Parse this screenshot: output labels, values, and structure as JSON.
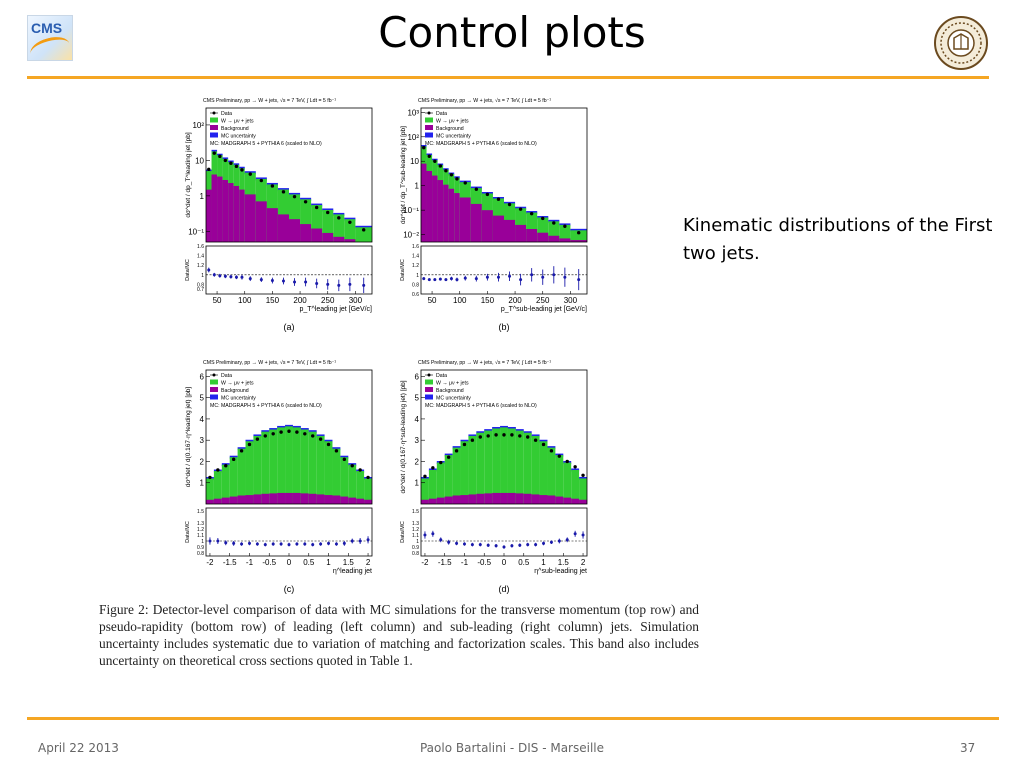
{
  "slide": {
    "title": "Control plots",
    "side_text": "Kinematic distributions of the First two jets."
  },
  "footer": {
    "date": "April 22 2013",
    "author_event": "Paolo Bartalini - DIS - Marseille",
    "page": "37"
  },
  "logos": {
    "left_text": "CMS",
    "left_icon": "cms-logo-icon",
    "right_icon": "university-seal-icon"
  },
  "figure": {
    "header": "CMS Preliminary,  pp → W + jets,  √s = 7 TeV,   ∫ Ldt = 5 fb⁻¹",
    "legend": [
      {
        "label": "Data",
        "color": "#000000",
        "kind": "marker"
      },
      {
        "label": "W → μν + jets",
        "color": "#33cc33",
        "kind": "box"
      },
      {
        "label": "Background",
        "color": "#990099",
        "kind": "box"
      },
      {
        "label": "MC uncertainty",
        "color": "#2222ee",
        "kind": "box"
      }
    ],
    "mc_note": "MC: MADGRAPH 5 + PYTHIA 6 (scaled to NLO)",
    "ratio_label": "Data/MC",
    "caption": "Figure 2: Detector-level comparison of data with MC simulations for the transverse momentum (top row) and pseudo-rapidity (bottom row) of leading (left column) and sub-leading (right column) jets.  Simulation uncertainty includes systematic due to variation of matching and factorization scales. This band also includes uncertainty on theoretical cross sections quoted in Table 1."
  },
  "colors": {
    "accent": "#f5a623",
    "signal": "#33cc33",
    "background": "#990099",
    "uncertainty": "#2222ee",
    "ratio_points": "#1a1aaa"
  },
  "chart_data": [
    {
      "id": "a",
      "tag": "(a)",
      "type": "bar",
      "scale": "log",
      "ylabel": "dσ^det / dp_T^leading jet [pb]",
      "xlabel": "p_T^leading jet [GeV/c]",
      "xlim": [
        30,
        330
      ],
      "ylim": [
        0.05,
        300
      ],
      "ytick_labels": [
        "10²",
        "10",
        "1",
        "10⁻¹"
      ],
      "ytick_values": [
        100,
        10,
        1,
        0.1
      ],
      "xtick_labels": [
        "50",
        "100",
        "150",
        "200",
        "250",
        "300"
      ],
      "xtick_values": [
        50,
        100,
        150,
        200,
        250,
        300
      ],
      "bin_edges": [
        30,
        40,
        50,
        60,
        70,
        80,
        90,
        100,
        120,
        140,
        160,
        180,
        200,
        220,
        240,
        260,
        280,
        300,
        330
      ],
      "signal_total": [
        5,
        18,
        14,
        11,
        9,
        7.5,
        6,
        4.5,
        3,
        2.1,
        1.5,
        1.1,
        0.8,
        0.55,
        0.4,
        0.3,
        0.22,
        0.13
      ],
      "background": [
        1.5,
        4,
        3.5,
        2.8,
        2.3,
        1.9,
        1.5,
        1.1,
        0.7,
        0.45,
        0.3,
        0.22,
        0.16,
        0.12,
        0.09,
        0.07,
        0.06,
        0.05
      ],
      "data": [
        {
          "x": 35,
          "y": 5.6
        },
        {
          "x": 45,
          "y": 16
        },
        {
          "x": 55,
          "y": 13
        },
        {
          "x": 65,
          "y": 10
        },
        {
          "x": 75,
          "y": 8.3
        },
        {
          "x": 85,
          "y": 6.8
        },
        {
          "x": 95,
          "y": 5.4
        },
        {
          "x": 110,
          "y": 4.1
        },
        {
          "x": 130,
          "y": 2.7
        },
        {
          "x": 150,
          "y": 1.9
        },
        {
          "x": 170,
          "y": 1.3
        },
        {
          "x": 190,
          "y": 0.95
        },
        {
          "x": 210,
          "y": 0.68
        },
        {
          "x": 230,
          "y": 0.47
        },
        {
          "x": 250,
          "y": 0.34
        },
        {
          "x": 270,
          "y": 0.24
        },
        {
          "x": 290,
          "y": 0.18
        },
        {
          "x": 315,
          "y": 0.11
        }
      ],
      "ratio": {
        "ylim": [
          0.6,
          1.6
        ],
        "ytick_labels": [
          "1.6",
          "1.4",
          "1.2",
          "1",
          "0.8",
          "0.7"
        ],
        "ytick_values": [
          1.6,
          1.4,
          1.2,
          1,
          0.8,
          0.7
        ],
        "x": [
          35,
          45,
          55,
          65,
          75,
          85,
          95,
          110,
          130,
          150,
          170,
          190,
          210,
          230,
          250,
          270,
          290,
          315
        ],
        "y": [
          1.1,
          1.0,
          0.98,
          0.97,
          0.96,
          0.95,
          0.95,
          0.92,
          0.9,
          0.88,
          0.87,
          0.85,
          0.85,
          0.82,
          0.8,
          0.78,
          0.8,
          0.78
        ],
        "err": [
          0.05,
          0.04,
          0.04,
          0.04,
          0.04,
          0.04,
          0.05,
          0.05,
          0.05,
          0.06,
          0.07,
          0.08,
          0.09,
          0.1,
          0.11,
          0.12,
          0.14,
          0.16
        ]
      }
    },
    {
      "id": "b",
      "tag": "(b)",
      "type": "bar",
      "scale": "log",
      "ylabel": "dσ^det / dp_T^sub-leading jet [pb]",
      "xlabel": "p_T^sub-leading jet [GeV/c]",
      "xlim": [
        30,
        330
      ],
      "ylim": [
        0.005,
        1500
      ],
      "ytick_labels": [
        "10³",
        "10²",
        "10",
        "1",
        "10⁻¹",
        "10⁻²"
      ],
      "ytick_values": [
        1000,
        100,
        10,
        1,
        0.1,
        0.01
      ],
      "xtick_labels": [
        "50",
        "100",
        "150",
        "200",
        "250",
        "300"
      ],
      "xtick_values": [
        50,
        100,
        150,
        200,
        250,
        300
      ],
      "bin_edges": [
        30,
        40,
        50,
        60,
        70,
        80,
        90,
        100,
        120,
        140,
        160,
        180,
        200,
        220,
        240,
        260,
        280,
        300,
        330
      ],
      "signal_total": [
        40,
        18,
        11,
        7,
        4.5,
        3,
        2.1,
        1.4,
        0.8,
        0.48,
        0.3,
        0.19,
        0.12,
        0.08,
        0.05,
        0.035,
        0.025,
        0.015
      ],
      "background": [
        8,
        4,
        2.6,
        1.7,
        1.1,
        0.75,
        0.5,
        0.33,
        0.18,
        0.1,
        0.06,
        0.04,
        0.025,
        0.017,
        0.012,
        0.009,
        0.007,
        0.006
      ],
      "data": [
        {
          "x": 35,
          "y": 36
        },
        {
          "x": 45,
          "y": 16
        },
        {
          "x": 55,
          "y": 10
        },
        {
          "x": 65,
          "y": 6.4
        },
        {
          "x": 75,
          "y": 4.1
        },
        {
          "x": 85,
          "y": 2.8
        },
        {
          "x": 95,
          "y": 1.9
        },
        {
          "x": 110,
          "y": 1.3
        },
        {
          "x": 130,
          "y": 0.72
        },
        {
          "x": 150,
          "y": 0.44
        },
        {
          "x": 170,
          "y": 0.28
        },
        {
          "x": 190,
          "y": 0.17
        },
        {
          "x": 210,
          "y": 0.11
        },
        {
          "x": 230,
          "y": 0.072
        },
        {
          "x": 250,
          "y": 0.046
        },
        {
          "x": 270,
          "y": 0.03
        },
        {
          "x": 290,
          "y": 0.022
        },
        {
          "x": 315,
          "y": 0.012
        }
      ],
      "ratio": {
        "ylim": [
          0.6,
          1.6
        ],
        "ytick_labels": [
          "1.6",
          "1.4",
          "1.2",
          "1",
          "0.8",
          "0.6"
        ],
        "ytick_values": [
          1.6,
          1.4,
          1.2,
          1,
          0.8,
          0.6
        ],
        "x": [
          35,
          45,
          55,
          65,
          75,
          85,
          95,
          110,
          130,
          150,
          170,
          190,
          210,
          230,
          250,
          270,
          290,
          315
        ],
        "y": [
          0.92,
          0.9,
          0.9,
          0.91,
          0.9,
          0.92,
          0.9,
          0.93,
          0.92,
          0.95,
          0.95,
          0.97,
          0.9,
          1.0,
          0.95,
          1.0,
          0.95,
          0.9
        ],
        "err": [
          0.03,
          0.03,
          0.03,
          0.03,
          0.03,
          0.04,
          0.04,
          0.05,
          0.06,
          0.07,
          0.09,
          0.1,
          0.12,
          0.14,
          0.16,
          0.18,
          0.2,
          0.22
        ]
      }
    },
    {
      "id": "c",
      "tag": "(c)",
      "type": "bar",
      "scale": "linear",
      "ylabel": "dσ^det / d(0.167·η^leading jet) [pb]",
      "xlabel": "η^leading jet",
      "xlim": [
        -2.1,
        2.1
      ],
      "ylim": [
        0,
        6.3
      ],
      "ytick_labels": [
        "1",
        "2",
        "3",
        "4",
        "5",
        "6"
      ],
      "ytick_values": [
        1,
        2,
        3,
        4,
        5,
        6
      ],
      "xtick_labels": [
        "-2",
        "-1.5",
        "-1",
        "-0.5",
        "0",
        "0.5",
        "1",
        "1.5",
        "2"
      ],
      "xtick_values": [
        -2,
        -1.5,
        -1,
        -0.5,
        0,
        0.5,
        1,
        1.5,
        2
      ],
      "bin_edges": [
        -2.1,
        -1.9,
        -1.7,
        -1.5,
        -1.3,
        -1.1,
        -0.9,
        -0.7,
        -0.5,
        -0.3,
        -0.1,
        0.1,
        0.3,
        0.5,
        0.7,
        0.9,
        1.1,
        1.3,
        1.5,
        1.7,
        1.9,
        2.1
      ],
      "signal_total": [
        1.2,
        1.55,
        1.85,
        2.2,
        2.6,
        2.95,
        3.2,
        3.4,
        3.5,
        3.6,
        3.65,
        3.6,
        3.5,
        3.4,
        3.2,
        2.95,
        2.6,
        2.2,
        1.85,
        1.55,
        1.2
      ],
      "background": [
        0.2,
        0.25,
        0.3,
        0.35,
        0.4,
        0.42,
        0.45,
        0.48,
        0.5,
        0.52,
        0.52,
        0.52,
        0.5,
        0.48,
        0.45,
        0.42,
        0.4,
        0.35,
        0.3,
        0.25,
        0.2
      ],
      "data": [
        {
          "x": -2.0,
          "y": 1.25
        },
        {
          "x": -1.8,
          "y": 1.6
        },
        {
          "x": -1.6,
          "y": 1.8
        },
        {
          "x": -1.4,
          "y": 2.1
        },
        {
          "x": -1.2,
          "y": 2.5
        },
        {
          "x": -1.0,
          "y": 2.8
        },
        {
          "x": -0.8,
          "y": 3.05
        },
        {
          "x": -0.6,
          "y": 3.2
        },
        {
          "x": -0.4,
          "y": 3.3
        },
        {
          "x": -0.2,
          "y": 3.38
        },
        {
          "x": 0.0,
          "y": 3.42
        },
        {
          "x": 0.2,
          "y": 3.38
        },
        {
          "x": 0.4,
          "y": 3.3
        },
        {
          "x": 0.6,
          "y": 3.2
        },
        {
          "x": 0.8,
          "y": 3.05
        },
        {
          "x": 1.0,
          "y": 2.8
        },
        {
          "x": 1.2,
          "y": 2.5
        },
        {
          "x": 1.4,
          "y": 2.1
        },
        {
          "x": 1.6,
          "y": 1.8
        },
        {
          "x": 1.8,
          "y": 1.6
        },
        {
          "x": 2.0,
          "y": 1.25
        }
      ],
      "ratio": {
        "ylim": [
          0.75,
          1.55
        ],
        "ytick_labels": [
          "1.5",
          "1.3",
          "1.2",
          "1.1",
          "1",
          "0.9",
          "0.8"
        ],
        "ytick_values": [
          1.5,
          1.3,
          1.2,
          1.1,
          1,
          0.9,
          0.8
        ],
        "x": [
          -2,
          -1.8,
          -1.6,
          -1.4,
          -1.2,
          -1,
          -0.8,
          -0.6,
          -0.4,
          -0.2,
          0,
          0.2,
          0.4,
          0.6,
          0.8,
          1,
          1.2,
          1.4,
          1.6,
          1.8,
          2
        ],
        "y": [
          1.0,
          1.0,
          0.97,
          0.96,
          0.95,
          0.96,
          0.95,
          0.94,
          0.95,
          0.95,
          0.94,
          0.95,
          0.95,
          0.94,
          0.95,
          0.96,
          0.95,
          0.96,
          1.0,
          1.0,
          1.02
        ],
        "err": [
          0.06,
          0.05,
          0.04,
          0.04,
          0.03,
          0.03,
          0.03,
          0.03,
          0.03,
          0.03,
          0.03,
          0.03,
          0.03,
          0.03,
          0.03,
          0.03,
          0.03,
          0.04,
          0.04,
          0.05,
          0.06
        ]
      }
    },
    {
      "id": "d",
      "tag": "(d)",
      "type": "bar",
      "scale": "linear",
      "ylabel": "dσ^det / d(0.167·η^sub-leading jet) [pb]",
      "xlabel": "η^sub-leading jet",
      "xlim": [
        -2.1,
        2.1
      ],
      "ylim": [
        0,
        6.3
      ],
      "ytick_labels": [
        "1",
        "2",
        "3",
        "4",
        "5",
        "6"
      ],
      "ytick_values": [
        1,
        2,
        3,
        4,
        5,
        6
      ],
      "xtick_labels": [
        "-2",
        "-1.5",
        "-1",
        "-0.5",
        "0",
        "0.5",
        "1",
        "1.5",
        "2"
      ],
      "xtick_values": [
        -2,
        -1.5,
        -1,
        -0.5,
        0,
        0.5,
        1,
        1.5,
        2
      ],
      "bin_edges": [
        -2.1,
        -1.9,
        -1.7,
        -1.5,
        -1.3,
        -1.1,
        -0.9,
        -0.7,
        -0.5,
        -0.3,
        -0.1,
        0.1,
        0.3,
        0.5,
        0.7,
        0.9,
        1.1,
        1.3,
        1.5,
        1.7,
        1.9,
        2.1
      ],
      "signal_total": [
        1.2,
        1.6,
        1.95,
        2.3,
        2.65,
        2.95,
        3.2,
        3.35,
        3.45,
        3.55,
        3.6,
        3.55,
        3.45,
        3.35,
        3.2,
        2.95,
        2.65,
        2.3,
        1.95,
        1.6,
        1.2
      ],
      "background": [
        0.2,
        0.25,
        0.3,
        0.35,
        0.4,
        0.42,
        0.45,
        0.48,
        0.5,
        0.52,
        0.52,
        0.52,
        0.5,
        0.48,
        0.45,
        0.42,
        0.4,
        0.35,
        0.3,
        0.25,
        0.2
      ],
      "data": [
        {
          "x": -2.0,
          "y": 1.3
        },
        {
          "x": -1.8,
          "y": 1.7
        },
        {
          "x": -1.6,
          "y": 1.95
        },
        {
          "x": -1.4,
          "y": 2.2
        },
        {
          "x": -1.2,
          "y": 2.5
        },
        {
          "x": -1.0,
          "y": 2.8
        },
        {
          "x": -0.8,
          "y": 3.0
        },
        {
          "x": -0.6,
          "y": 3.15
        },
        {
          "x": -0.4,
          "y": 3.2
        },
        {
          "x": -0.2,
          "y": 3.25
        },
        {
          "x": 0.0,
          "y": 3.25
        },
        {
          "x": 0.2,
          "y": 3.25
        },
        {
          "x": 0.4,
          "y": 3.2
        },
        {
          "x": 0.6,
          "y": 3.15
        },
        {
          "x": 0.8,
          "y": 3.0
        },
        {
          "x": 1.0,
          "y": 2.8
        },
        {
          "x": 1.2,
          "y": 2.5
        },
        {
          "x": 1.4,
          "y": 2.25
        },
        {
          "x": 1.6,
          "y": 2.0
        },
        {
          "x": 1.8,
          "y": 1.75
        },
        {
          "x": 2.0,
          "y": 1.35
        }
      ],
      "ratio": {
        "ylim": [
          0.75,
          1.55
        ],
        "ytick_labels": [
          "1.5",
          "1.3",
          "1.2",
          "1.1",
          "1",
          "0.9",
          "0.8"
        ],
        "ytick_values": [
          1.5,
          1.3,
          1.2,
          1.1,
          1,
          0.9,
          0.8
        ],
        "x": [
          -2,
          -1.8,
          -1.6,
          -1.4,
          -1.2,
          -1,
          -0.8,
          -0.6,
          -0.4,
          -0.2,
          0,
          0.2,
          0.4,
          0.6,
          0.8,
          1,
          1.2,
          1.4,
          1.6,
          1.8,
          2
        ],
        "y": [
          1.1,
          1.12,
          1.02,
          0.98,
          0.96,
          0.95,
          0.94,
          0.94,
          0.93,
          0.92,
          0.9,
          0.92,
          0.93,
          0.94,
          0.94,
          0.96,
          0.98,
          1.0,
          1.02,
          1.12,
          1.1
        ],
        "err": [
          0.06,
          0.05,
          0.04,
          0.04,
          0.03,
          0.03,
          0.03,
          0.03,
          0.03,
          0.03,
          0.03,
          0.03,
          0.03,
          0.03,
          0.03,
          0.03,
          0.03,
          0.04,
          0.04,
          0.05,
          0.06
        ]
      }
    }
  ]
}
